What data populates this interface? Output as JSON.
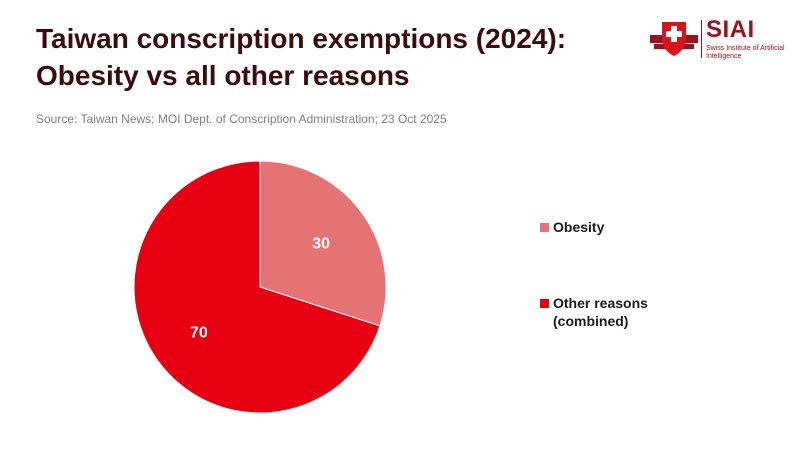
{
  "title_lines": [
    "Taiwan conscription exemptions (2024):",
    "Obesity vs all other reasons"
  ],
  "source": "Source: Taiwan News; MOI Dept. of Conscription Administration; 23 Oct 2025",
  "logo": {
    "word": "SIAI",
    "subtitle": "Swiss Institute of Artificial Intelligence",
    "color": "#a0101b"
  },
  "chart_data": {
    "type": "pie",
    "title": "Taiwan conscription exemptions (2024): Obesity vs all other reasons",
    "slices": [
      {
        "label": "Obesity",
        "value": 30,
        "color": "#e57373"
      },
      {
        "label": "Other reasons (combined)",
        "value": 70,
        "color": "#e60012"
      }
    ],
    "start_angle_deg": 0,
    "direction": "clockwise",
    "legend_position": "right",
    "data_labels": [
      "30",
      "70"
    ]
  },
  "legend": [
    {
      "label": "Obesity",
      "color": "#e57373"
    },
    {
      "label": "Other reasons\n(combined)",
      "color": "#e60012"
    }
  ]
}
